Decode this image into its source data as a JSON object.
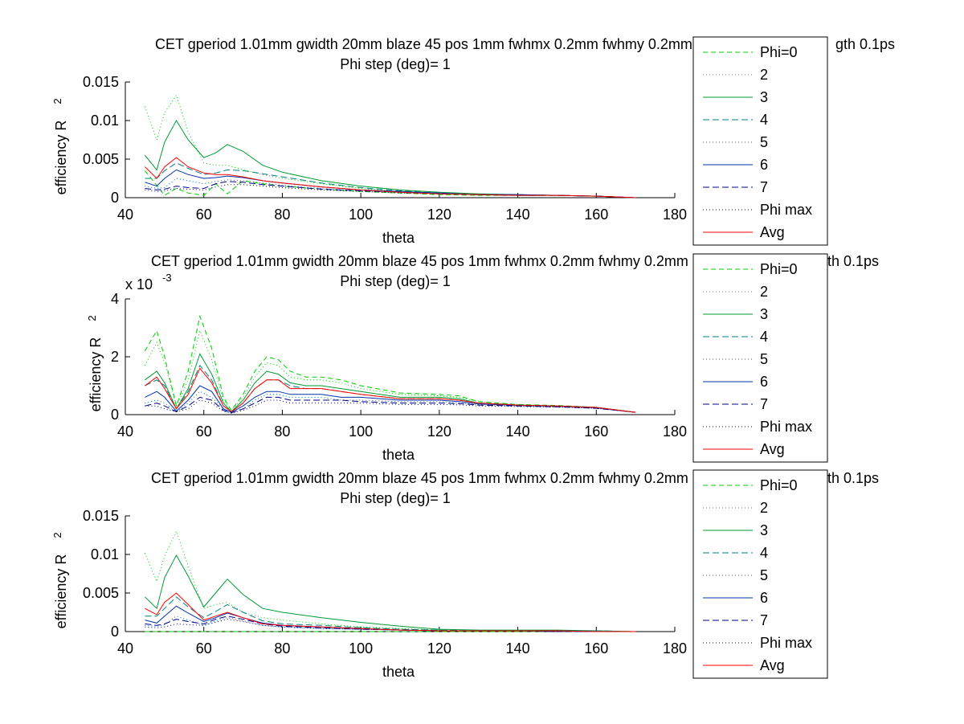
{
  "chart_data": [
    {
      "type": "line",
      "title": "CET gperiod 1.01mm gwidth 20mm blaze 45 pos 1mm fwhmx 0.2mm fwhmy 0.2mm charge 2",
      "title_tail": "gth 0.1ps",
      "subtitle": "Phi step (deg)= 1",
      "xlabel": "theta",
      "ylabel": "efficiency R",
      "ylabel_sup": "2",
      "exponent_label": "",
      "exponent_sup": "",
      "xlim": [
        40,
        180
      ],
      "ylim": [
        0,
        0.015
      ],
      "xticks": [
        "40",
        "60",
        "80",
        "100",
        "120",
        "140",
        "160",
        "180"
      ],
      "yticks": [
        "0",
        "0.005",
        "0.01",
        "0.015"
      ],
      "ytick_values": [
        0,
        0.005,
        0.01,
        0.015
      ],
      "legend_position": "right",
      "x": [
        45,
        48,
        50,
        53,
        56,
        60,
        63,
        66,
        70,
        75,
        80,
        90,
        100,
        110,
        120,
        130,
        140,
        150,
        160,
        170
      ],
      "series": [
        {
          "name": "Phi=0",
          "color": "#00cc00",
          "dash": "6,4",
          "values": [
            0.0035,
            0.0016,
            0.0003,
            0.0012,
            0.0006,
            0.0003,
            0.0018,
            0.0005,
            0.0022,
            0.0018,
            0.0015,
            0.0011,
            0.0008,
            0.0006,
            0.0004,
            0.0003,
            0.0003,
            0.0003,
            0.0002,
            0.0
          ]
        },
        {
          "name": "2",
          "color": "#00cc00",
          "dash": "1,3",
          "values": [
            0.0118,
            0.0075,
            0.011,
            0.0133,
            0.0085,
            0.0045,
            0.0042,
            0.0042,
            0.0036,
            0.003,
            0.0025,
            0.0018,
            0.0012,
            0.0008,
            0.0006,
            0.0004,
            0.0003,
            0.0003,
            0.0002,
            0.0
          ]
        },
        {
          "name": "3",
          "color": "#009933",
          "dash": "",
          "values": [
            0.0055,
            0.0036,
            0.0072,
            0.01,
            0.0075,
            0.0052,
            0.0058,
            0.0069,
            0.006,
            0.0042,
            0.0033,
            0.0022,
            0.0015,
            0.001,
            0.0007,
            0.0005,
            0.0004,
            0.0003,
            0.0002,
            0.0
          ]
        },
        {
          "name": "4",
          "color": "#008080",
          "dash": "8,4",
          "values": [
            0.0025,
            0.0025,
            0.0035,
            0.0045,
            0.0038,
            0.003,
            0.0032,
            0.0036,
            0.0035,
            0.0031,
            0.0027,
            0.0019,
            0.0013,
            0.0009,
            0.0006,
            0.0004,
            0.0004,
            0.0003,
            0.0002,
            0.0
          ]
        },
        {
          "name": "5",
          "color": "#0066cc",
          "dash": "1,3",
          "values": [
            0.0015,
            0.0012,
            0.0013,
            0.0025,
            0.0022,
            0.0018,
            0.0021,
            0.0023,
            0.0022,
            0.0019,
            0.0016,
            0.0012,
            0.0009,
            0.0007,
            0.0005,
            0.0004,
            0.0003,
            0.0003,
            0.0002,
            0.0
          ]
        },
        {
          "name": "6",
          "color": "#0033aa",
          "dash": "",
          "values": [
            0.002,
            0.0015,
            0.0025,
            0.0036,
            0.003,
            0.0025,
            0.0026,
            0.0028,
            0.0026,
            0.0022,
            0.0019,
            0.0014,
            0.001,
            0.0008,
            0.0006,
            0.0004,
            0.0004,
            0.0003,
            0.0002,
            0.0
          ]
        },
        {
          "name": "7",
          "color": "#000088",
          "dash": "8,4",
          "values": [
            0.0012,
            0.001,
            0.0011,
            0.0015,
            0.0013,
            0.0012,
            0.0018,
            0.0021,
            0.002,
            0.0017,
            0.0015,
            0.0011,
            0.0009,
            0.0007,
            0.0005,
            0.0004,
            0.0003,
            0.0003,
            0.0002,
            0.0
          ]
        },
        {
          "name": "Phi max",
          "color": "#000066",
          "dash": "1,3",
          "values": [
            0.001,
            0.0008,
            0.0009,
            0.0012,
            0.0011,
            0.001,
            0.0014,
            0.0017,
            0.0017,
            0.0015,
            0.0013,
            0.001,
            0.0008,
            0.0006,
            0.0005,
            0.0004,
            0.0003,
            0.0003,
            0.0002,
            0.0
          ]
        },
        {
          "name": "Avg",
          "color": "#ff0000",
          "dash": "",
          "values": [
            0.004,
            0.0025,
            0.004,
            0.0052,
            0.004,
            0.0032,
            0.003,
            0.003,
            0.0027,
            0.0022,
            0.0019,
            0.0014,
            0.001,
            0.0007,
            0.0005,
            0.0004,
            0.0003,
            0.0003,
            0.0002,
            0.0
          ]
        }
      ]
    },
    {
      "type": "line",
      "title": "CET gperiod 1.01mm gwidth 20mm blaze 45 pos 1mm fwhmx 0.2mm fwhmy 0.2mm charge 20",
      "title_tail": "th 0.1ps",
      "subtitle": "Phi step (deg)= 1",
      "xlabel": "theta",
      "ylabel": "efficiency R",
      "ylabel_sup": "2",
      "exponent_label": "x 10",
      "exponent_sup": "-3",
      "xlim": [
        40,
        180
      ],
      "ylim": [
        0,
        0.004
      ],
      "xticks": [
        "40",
        "60",
        "80",
        "100",
        "120",
        "140",
        "160",
        "180"
      ],
      "yticks": [
        "0",
        "2",
        "4"
      ],
      "ytick_values": [
        0,
        0.002,
        0.004
      ],
      "legend_position": "right",
      "x": [
        45,
        48,
        50,
        53,
        56,
        59,
        62,
        65,
        67,
        70,
        73,
        76,
        79,
        82,
        86,
        90,
        95,
        100,
        110,
        120,
        125,
        130,
        140,
        150,
        160,
        170
      ],
      "series": [
        {
          "name": "Phi=0",
          "color": "#00cc00",
          "dash": "6,4",
          "values": [
            0.0022,
            0.0029,
            0.002,
            0.0003,
            0.0015,
            0.0034,
            0.0023,
            0.0006,
            0.00015,
            0.0007,
            0.0015,
            0.002,
            0.0019,
            0.0015,
            0.0013,
            0.0013,
            0.0012,
            0.001,
            0.00075,
            0.0007,
            0.00065,
            0.00045,
            0.00035,
            0.00032,
            0.00025,
            8e-05
          ]
        },
        {
          "name": "2",
          "color": "#00cc00",
          "dash": "1,3",
          "values": [
            0.0017,
            0.0025,
            0.0018,
            0.0003,
            0.0012,
            0.0029,
            0.0019,
            0.0005,
            0.00015,
            0.0006,
            0.0013,
            0.0018,
            0.0017,
            0.0013,
            0.0012,
            0.0012,
            0.0011,
            0.0009,
            0.0007,
            0.00065,
            0.0006,
            0.00045,
            0.00035,
            0.0003,
            0.00025,
            8e-05
          ]
        },
        {
          "name": "3",
          "color": "#009933",
          "dash": "",
          "values": [
            0.0012,
            0.0015,
            0.0011,
            0.0002,
            0.0009,
            0.0021,
            0.0014,
            0.0004,
            0.0001,
            0.0005,
            0.0011,
            0.0015,
            0.0014,
            0.0011,
            0.001,
            0.001,
            0.0009,
            0.0008,
            0.0006,
            0.0006,
            0.00055,
            0.0004,
            0.00033,
            0.0003,
            0.00025,
            8e-05
          ]
        },
        {
          "name": "4",
          "color": "#008080",
          "dash": "8,4",
          "values": [
            0.001,
            0.0012,
            0.001,
            0.0002,
            0.0008,
            0.0017,
            0.0012,
            0.0003,
            0.0001,
            0.0004,
            0.0009,
            0.0012,
            0.0012,
            0.001,
            0.0009,
            0.0009,
            0.0008,
            0.0007,
            0.00055,
            0.00055,
            0.0005,
            0.0004,
            0.00033,
            0.0003,
            0.00025,
            8e-05
          ]
        },
        {
          "name": "5",
          "color": "#0066cc",
          "dash": "1,3",
          "values": [
            0.0004,
            0.0005,
            0.0004,
            0.0001,
            0.0004,
            0.0008,
            0.0006,
            0.0002,
            8e-05,
            0.0002,
            0.0005,
            0.0007,
            0.0007,
            0.0006,
            0.0006,
            0.0006,
            0.0005,
            0.0005,
            0.00045,
            0.00045,
            0.0004,
            0.00035,
            0.0003,
            0.00028,
            0.00023,
            8e-05
          ]
        },
        {
          "name": "6",
          "color": "#0033aa",
          "dash": "",
          "values": [
            0.0006,
            0.0008,
            0.0006,
            0.00012,
            0.0005,
            0.001,
            0.0008,
            0.0002,
            8e-05,
            0.0003,
            0.0006,
            0.0008,
            0.0008,
            0.0007,
            0.0007,
            0.0007,
            0.0006,
            0.0006,
            0.0005,
            0.0005,
            0.00045,
            0.00037,
            0.00032,
            0.00029,
            0.00024,
            8e-05
          ]
        },
        {
          "name": "7",
          "color": "#000088",
          "dash": "8,4",
          "values": [
            0.0003,
            0.0004,
            0.0003,
            0.0001,
            0.0003,
            0.0006,
            0.0005,
            0.00015,
            6e-05,
            0.0002,
            0.0004,
            0.0006,
            0.0006,
            0.0005,
            0.0005,
            0.0005,
            0.0005,
            0.00045,
            0.0004,
            0.0004,
            0.00038,
            0.00033,
            0.0003,
            0.00027,
            0.00022,
            8e-05
          ]
        },
        {
          "name": "Phi max",
          "color": "#000066",
          "dash": "1,3",
          "values": [
            0.0003,
            0.0003,
            0.0002,
            0.0001,
            0.0002,
            0.0005,
            0.0004,
            0.00012,
            5e-05,
            0.00015,
            0.0003,
            0.0005,
            0.0005,
            0.0004,
            0.0004,
            0.0004,
            0.0004,
            0.0004,
            0.00035,
            0.00035,
            0.00034,
            0.0003,
            0.00028,
            0.00026,
            0.00022,
            8e-05
          ]
        },
        {
          "name": "Avg",
          "color": "#ff0000",
          "dash": "",
          "values": [
            0.001,
            0.0013,
            0.0009,
            0.0002,
            0.0007,
            0.0016,
            0.0011,
            0.0003,
            0.0001,
            0.0004,
            0.0009,
            0.0012,
            0.0012,
            0.0009,
            0.0009,
            0.0009,
            0.0008,
            0.0007,
            0.00055,
            0.00055,
            0.0005,
            0.0004,
            0.00033,
            0.0003,
            0.00025,
            8e-05
          ]
        }
      ]
    },
    {
      "type": "line",
      "title": "CET gperiod 1.01mm gwidth 20mm blaze 45 pos 1mm fwhmx 0.2mm fwhmy 0.2mm charge 20",
      "title_tail": "th 0.1ps",
      "subtitle": "Phi step (deg)= 1",
      "xlabel": "theta",
      "ylabel": "efficiency R",
      "ylabel_sup": "2",
      "exponent_label": "",
      "exponent_sup": "",
      "xlim": [
        40,
        180
      ],
      "ylim": [
        0,
        0.015
      ],
      "xticks": [
        "40",
        "60",
        "80",
        "100",
        "120",
        "140",
        "160",
        "180"
      ],
      "yticks": [
        "0",
        "0.005",
        "0.01",
        "0.015"
      ],
      "ytick_values": [
        0,
        0.005,
        0.01,
        0.015
      ],
      "legend_position": "right",
      "x": [
        45,
        48,
        50,
        53,
        56,
        60,
        63,
        66,
        70,
        75,
        80,
        90,
        100,
        110,
        120,
        130,
        140,
        150,
        160,
        170
      ],
      "series": [
        {
          "name": "Phi=0",
          "color": "#00cc00",
          "dash": "6,4",
          "values": [
            0.0,
            0.0,
            0.0,
            0.0,
            0.0,
            0.0,
            0.0,
            0.0,
            0.0,
            0.0,
            0.0,
            0.0,
            0.0,
            0.0,
            0.0,
            0.0,
            0.0,
            0.0,
            0.0,
            0.0
          ]
        },
        {
          "name": "2",
          "color": "#00cc00",
          "dash": "1,3",
          "values": [
            0.0102,
            0.0065,
            0.0098,
            0.013,
            0.0085,
            0.003,
            0.0035,
            0.0038,
            0.0025,
            0.0018,
            0.0015,
            0.001,
            0.0006,
            0.0004,
            0.0002,
            0.0001,
            0.0001,
            0.0001,
            0.0001,
            0.0
          ]
        },
        {
          "name": "3",
          "color": "#009933",
          "dash": "",
          "values": [
            0.0045,
            0.003,
            0.007,
            0.0099,
            0.0072,
            0.0032,
            0.005,
            0.0068,
            0.0048,
            0.003,
            0.0025,
            0.0018,
            0.0012,
            0.0007,
            0.0003,
            0.0002,
            0.0002,
            0.0002,
            0.0001,
            0.0
          ]
        },
        {
          "name": "4",
          "color": "#008080",
          "dash": "8,4",
          "values": [
            0.002,
            0.002,
            0.003,
            0.0045,
            0.0032,
            0.0018,
            0.0026,
            0.0035,
            0.0025,
            0.0014,
            0.001,
            0.0008,
            0.0005,
            0.0003,
            0.0002,
            0.0001,
            0.0001,
            0.0001,
            0.0001,
            0.0
          ]
        },
        {
          "name": "5",
          "color": "#0066cc",
          "dash": "1,3",
          "values": [
            0.0008,
            0.0007,
            0.0009,
            0.002,
            0.0015,
            0.0008,
            0.0014,
            0.0018,
            0.0014,
            0.0008,
            0.0006,
            0.0004,
            0.0003,
            0.0002,
            0.0001,
            0.0001,
            0.0001,
            0.0001,
            0.0,
            0.0
          ]
        },
        {
          "name": "6",
          "color": "#0033aa",
          "dash": "",
          "values": [
            0.0015,
            0.0011,
            0.002,
            0.0033,
            0.0024,
            0.0013,
            0.0018,
            0.0024,
            0.0018,
            0.0011,
            0.0008,
            0.0006,
            0.0004,
            0.0002,
            0.0001,
            0.0001,
            0.0001,
            0.0001,
            0.0,
            0.0
          ]
        },
        {
          "name": "7",
          "color": "#000088",
          "dash": "8,4",
          "values": [
            0.001,
            0.0008,
            0.001,
            0.0016,
            0.0013,
            0.001,
            0.0016,
            0.002,
            0.0016,
            0.001,
            0.0007,
            0.0005,
            0.0003,
            0.0002,
            0.0001,
            0.0001,
            0.0001,
            0.0,
            0.0,
            0.0
          ]
        },
        {
          "name": "Phi max",
          "color": "#000066",
          "dash": "1,3",
          "values": [
            0.0006,
            0.0005,
            0.0006,
            0.001,
            0.0009,
            0.0008,
            0.0012,
            0.0016,
            0.0013,
            0.0008,
            0.0006,
            0.0004,
            0.0003,
            0.0002,
            0.0001,
            0.0001,
            0.0001,
            0.0,
            0.0,
            0.0
          ]
        },
        {
          "name": "Avg",
          "color": "#ff0000",
          "dash": "",
          "values": [
            0.003,
            0.0022,
            0.0038,
            0.005,
            0.0035,
            0.0015,
            0.002,
            0.0025,
            0.0018,
            0.001,
            0.0008,
            0.0006,
            0.0004,
            0.0002,
            0.0001,
            0.0001,
            0.0001,
            0.0001,
            0.0,
            0.0
          ]
        }
      ]
    }
  ]
}
